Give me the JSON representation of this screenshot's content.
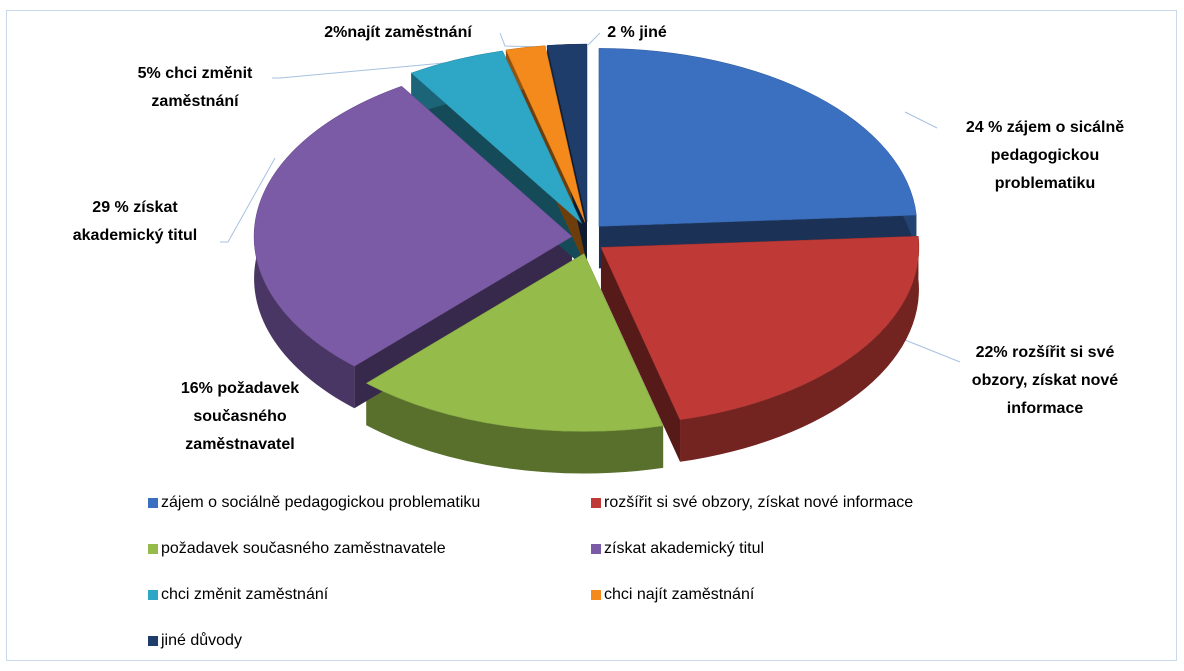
{
  "chart_data": {
    "type": "pie",
    "categories": [
      "zájem o sociálně pedagogickou problematiku",
      "rozšířit si své obzory, získat nové informace",
      "požadavek současného zaměstnavatele",
      "získat akademický titul",
      "chci změnit zaměstnání",
      "chci najít zaměstnání",
      "jiné důvody"
    ],
    "values": [
      24,
      22,
      16,
      29,
      5,
      2,
      2
    ],
    "value_labels": [
      [
        "24 % zájem o sicálně",
        "pedagogickou",
        "problematiku"
      ],
      [
        "22% rozšířit si své",
        "obzory, získat nové",
        "informace"
      ],
      [
        "16%  požadavek",
        "současného",
        "zaměstnavatel"
      ],
      [
        "29 %  získat",
        "akademický titul"
      ],
      [
        "5% chci změnit",
        "zaměstnání"
      ],
      [
        "2%najít zaměstnání"
      ],
      [
        "2 % jiné"
      ]
    ],
    "colors": [
      "#3b6fbf",
      "#bf3a36",
      "#95bb4a",
      "#7b5aa6",
      "#2ea6c6",
      "#f38a1b",
      "#1f3d6b"
    ],
    "legend": "bottom"
  }
}
